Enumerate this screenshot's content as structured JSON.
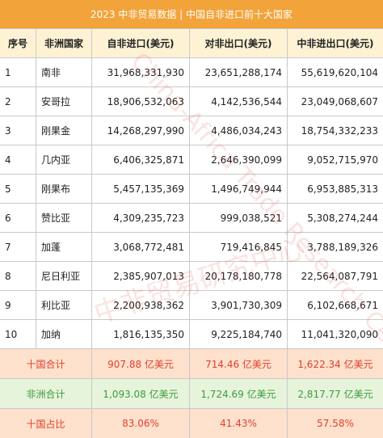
{
  "title": "2023 中非贸易数据 | 中国自非进口前十大国家",
  "table": {
    "header": [
      "序号",
      "非洲国家",
      "自非进口(美元)",
      "对非出口(美元)",
      "中非进出口(美元)"
    ],
    "rows": [
      [
        "1",
        "南非",
        "31,968,331,930",
        "23,651,288,174",
        "55,619,620,104"
      ],
      [
        "2",
        "安哥拉",
        "18,906,532,063",
        "4,142,536,544",
        "23,049,068,607"
      ],
      [
        "3",
        "刚果金",
        "14,268,297,990",
        "4,486,034,243",
        "18,754,332,233"
      ],
      [
        "4",
        "几内亚",
        "6,406,325,871",
        "2,646,390,099",
        "9,052,715,970"
      ],
      [
        "5",
        "刚果布",
        "5,457,135,369",
        "1,496,749,944",
        "6,953,885,313"
      ],
      [
        "6",
        "赞比亚",
        "4,309,235,723",
        "999,038,521",
        "5,308,274,244"
      ],
      [
        "7",
        "加蓬",
        "3,068,772,481",
        "719,416,845",
        "3,788,189,326"
      ],
      [
        "8",
        "尼日利亚",
        "2,385,907,013",
        "20,178,180,778",
        "22,564,087,791"
      ],
      [
        "9",
        "利比亚",
        "2,200,938,362",
        "3,901,730,309",
        "6,102,668,671"
      ],
      [
        "10",
        "加纳",
        "1,816,135,350",
        "9,225,184,740",
        "11,041,320,090"
      ]
    ],
    "summary": [
      [
        "十国合计",
        "907.88 亿美元",
        "714.46 亿美元",
        "1,622.34 亿美元"
      ],
      [
        "非洲合计",
        "1,093.08 亿美元",
        "1,724.69 亿美元",
        "2,817.77 亿美元"
      ],
      [
        "十国占比",
        "83.06%",
        "41.43%",
        "57.58%"
      ]
    ]
  },
  "watermark": {
    "en": "China-Africa Trade Research Center",
    "zh": "中非贸易研究中心"
  }
}
